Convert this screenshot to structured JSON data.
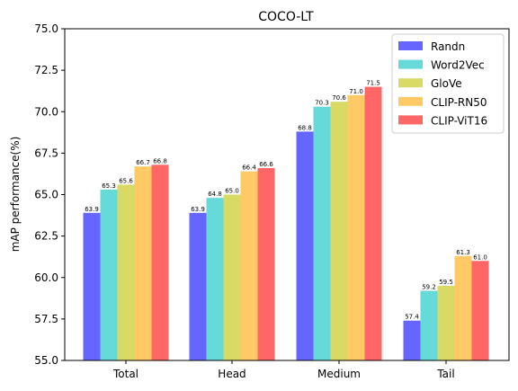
{
  "chart_data": {
    "type": "bar",
    "title": "COCO-LT",
    "xlabel": "",
    "ylabel": "mAP performance(%)",
    "ylim": [
      55.0,
      75.0
    ],
    "yticks": [
      55.0,
      57.5,
      60.0,
      62.5,
      65.0,
      67.5,
      70.0,
      72.5,
      75.0
    ],
    "ytick_labels": [
      "55.0",
      "57.5",
      "60.0",
      "62.5",
      "65.0",
      "67.5",
      "70.0",
      "72.5",
      "75.0"
    ],
    "categories": [
      "Total",
      "Head",
      "Medium",
      "Tail"
    ],
    "legend_position": "top-right",
    "grid": false,
    "series": [
      {
        "name": "Randn",
        "color": "#6666ff",
        "values": [
          63.9,
          63.9,
          68.8,
          57.4
        ],
        "labels": [
          "63.9",
          "63.9",
          "68.8",
          "57.4"
        ]
      },
      {
        "name": "Word2Vec",
        "color": "#66d9d9",
        "values": [
          65.3,
          64.8,
          70.3,
          59.2
        ],
        "labels": [
          "65.3",
          "64.8",
          "70.3",
          "59.2"
        ]
      },
      {
        "name": "GloVe",
        "color": "#d9d966",
        "values": [
          65.6,
          65.0,
          70.6,
          59.5
        ],
        "labels": [
          "65.6",
          "65.0",
          "70.6",
          "59.5"
        ]
      },
      {
        "name": "CLIP-RN50",
        "color": "#ffc966",
        "values": [
          66.7,
          66.4,
          71.0,
          61.3
        ],
        "labels": [
          "66.7",
          "66.4",
          "71.0",
          "61.3"
        ]
      },
      {
        "name": "CLIP-ViT16",
        "color": "#ff6666",
        "values": [
          66.8,
          66.6,
          71.5,
          61.0
        ],
        "labels": [
          "66.8",
          "66.6",
          "71.5",
          "61.0"
        ]
      }
    ]
  }
}
